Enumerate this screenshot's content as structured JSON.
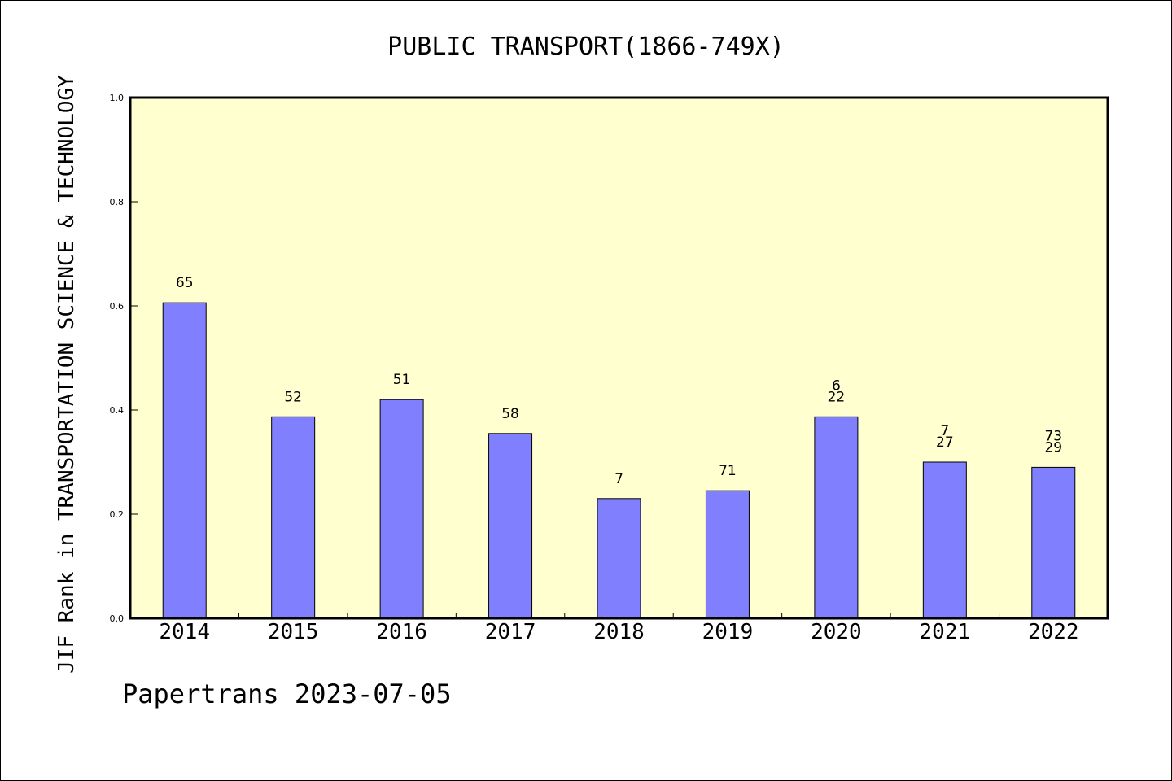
{
  "chart_data": {
    "type": "bar",
    "title": "PUBLIC TRANSPORT(1866-749X)",
    "ylabel": "JIF Rank in TRANSPORTATION SCIENCE & TECHNOLOGY",
    "xlabel": "",
    "ylim": [
      0,
      1.0
    ],
    "yticks": [
      "0.0",
      "0.2",
      "0.4",
      "0.6",
      "0.8",
      "1.0"
    ],
    "categories": [
      "2014",
      "2015",
      "2016",
      "2017",
      "2018",
      "2019",
      "2020",
      "2021",
      "2022"
    ],
    "values": [
      0.606,
      0.387,
      0.42,
      0.355,
      0.23,
      0.245,
      0.387,
      0.3,
      0.29
    ],
    "labels": [
      [
        "65"
      ],
      [
        "52"
      ],
      [
        "51"
      ],
      [
        "58"
      ],
      [
        "7"
      ],
      [
        "71"
      ],
      [
        "6",
        "22"
      ],
      [
        "7",
        "27"
      ],
      [
        "73",
        "29"
      ]
    ],
    "bar_color": "#8080ff",
    "plot_background": "#ffffd0",
    "grid": false,
    "footer": "Papertrans 2023-07-05"
  }
}
